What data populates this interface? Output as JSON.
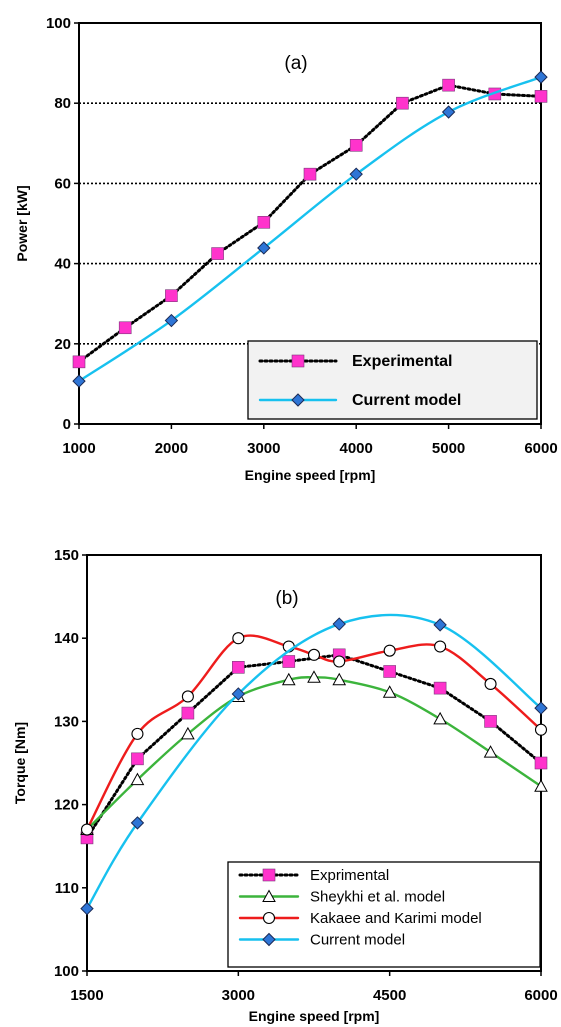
{
  "chart_data": [
    {
      "type": "line",
      "panel_label": "(a)",
      "xlabel": "Engine speed [rpm]",
      "ylabel": "Power [kW]",
      "xlim": [
        1000,
        6000
      ],
      "ylim": [
        0,
        100
      ],
      "xticks": [
        "1000",
        "2000",
        "3000",
        "4000",
        "5000",
        "6000"
      ],
      "yticks": [
        "0",
        "20",
        "40",
        "60",
        "80",
        "100"
      ],
      "grid": "horizontal dotted",
      "legend_position": "bottom-right",
      "series": [
        {
          "name": "Experimental",
          "style": "dotted",
          "marker": "square",
          "line_color": "#000000",
          "marker_color": "#ff33cc",
          "x": [
            1000,
            1500,
            2000,
            2500,
            3000,
            3500,
            4000,
            4500,
            5000,
            5500,
            6000
          ],
          "y": [
            15.5,
            24,
            32,
            42.5,
            50.3,
            62.3,
            69.5,
            80,
            84.5,
            82.3,
            81.7
          ]
        },
        {
          "name": "Current model",
          "style": "solid",
          "marker": "diamond",
          "line_color": "#17c1ef",
          "marker_color": "#2e75d6",
          "x": [
            1000,
            2000,
            3000,
            4000,
            5000,
            6000
          ],
          "y": [
            10.7,
            25.8,
            43.9,
            62.3,
            77.8,
            86.5
          ]
        }
      ]
    },
    {
      "type": "line",
      "panel_label": "(b)",
      "xlabel": "Engine speed [rpm]",
      "ylabel": "Torque [Nm]",
      "xlim": [
        1500,
        6000
      ],
      "ylim": [
        100,
        150
      ],
      "xticks": [
        "1500",
        "3000",
        "4500",
        "6000"
      ],
      "yticks": [
        "100",
        "110",
        "120",
        "130",
        "140",
        "150"
      ],
      "grid": "none",
      "legend_position": "bottom-right",
      "series": [
        {
          "name": "Exprimental",
          "style": "dotted",
          "marker": "square",
          "line_color": "#000000",
          "marker_color": "#ff33cc",
          "x": [
            1500,
            2000,
            2500,
            3000,
            3500,
            4000,
            4500,
            5000,
            5500,
            6000
          ],
          "y": [
            116,
            125.5,
            131,
            136.5,
            137.2,
            138,
            136,
            134,
            130,
            125
          ]
        },
        {
          "name": "Sheykhi et al. model",
          "style": "solid",
          "marker": "triangle",
          "line_color": "#3cb43c",
          "marker_color": "#ffffff",
          "x": [
            1500,
            2000,
            2500,
            3000,
            3500,
            3750,
            4000,
            4500,
            5000,
            5500,
            6000
          ],
          "y": [
            117,
            123,
            128.5,
            133,
            135,
            135.3,
            135,
            133.5,
            130.3,
            126.3,
            122.2
          ]
        },
        {
          "name": "Kakaee and Karimi model",
          "style": "solid",
          "marker": "circle",
          "line_color": "#ee1c1c",
          "marker_color": "#ffffff",
          "x": [
            1500,
            2000,
            2500,
            3000,
            3500,
            3750,
            4000,
            4500,
            5000,
            5500,
            6000
          ],
          "y": [
            117,
            128.5,
            133,
            140,
            139,
            138,
            137.2,
            138.5,
            139,
            134.5,
            129
          ]
        },
        {
          "name": "Current model",
          "style": "solid",
          "marker": "diamond",
          "line_color": "#17c1ef",
          "marker_color": "#2e75d6",
          "x": [
            1500,
            2000,
            3000,
            4000,
            5000,
            6000
          ],
          "y": [
            107.5,
            117.8,
            133.3,
            141.7,
            141.6,
            131.6
          ]
        }
      ]
    }
  ]
}
